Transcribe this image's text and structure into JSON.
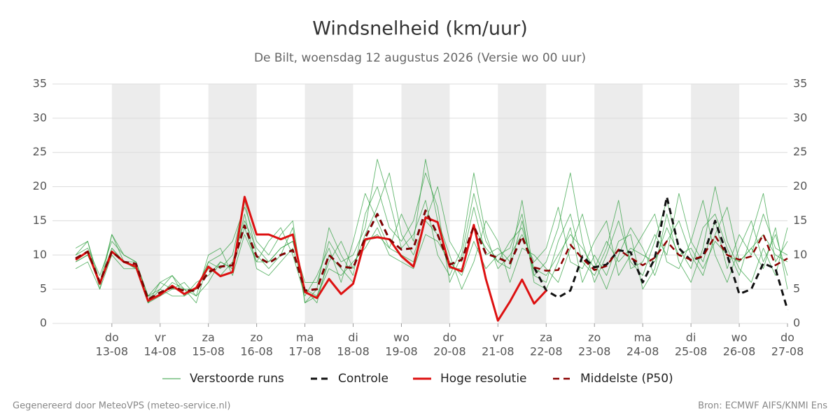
{
  "chart_data": {
    "type": "line",
    "title": "Windsnelheid (km/uur)",
    "subtitle": "De Bilt, woensdag 12 augustus 2026 (Versie wo 00 uur)",
    "footer_left": "Gegenereerd door MeteoVPS (meteo-service.nl)",
    "footer_right": "Bron: ECMWF AIFS/KNMI Ens",
    "x": [
      12.25,
      12.5,
      12.75,
      13,
      13.25,
      13.5,
      13.75,
      14,
      14.25,
      14.5,
      14.75,
      15,
      15.25,
      15.5,
      15.75,
      16,
      16.25,
      16.5,
      16.75,
      17,
      17.25,
      17.5,
      17.75,
      18,
      18.25,
      18.5,
      18.75,
      19,
      19.25,
      19.5,
      19.75,
      20,
      20.25,
      20.5,
      20.75,
      21,
      21.25,
      21.5,
      21.75,
      22,
      22.25,
      22.5,
      22.75,
      23,
      23.25,
      23.5,
      23.75,
      24,
      24.25,
      24.5,
      24.75,
      25,
      25.25,
      25.5,
      25.75,
      26,
      26.25,
      26.5,
      26.75,
      27
    ],
    "xlim": [
      11.77,
      27
    ],
    "xticks": [
      {
        "value": 13,
        "label": "13-08"
      },
      {
        "value": 14,
        "label": "14-08"
      },
      {
        "value": 15,
        "label": "15-08"
      },
      {
        "value": 16,
        "label": "16-08"
      },
      {
        "value": 17,
        "label": "17-08"
      },
      {
        "value": 18,
        "label": "18-08"
      },
      {
        "value": 19,
        "label": "19-08"
      },
      {
        "value": 20,
        "label": "20-08"
      },
      {
        "value": 21,
        "label": "21-08"
      },
      {
        "value": 22,
        "label": "22-08"
      },
      {
        "value": 23,
        "label": "23-08"
      },
      {
        "value": 24,
        "label": "24-08"
      },
      {
        "value": 25,
        "label": "25-08"
      },
      {
        "value": 26,
        "label": "26-08"
      },
      {
        "value": 27,
        "label": "27-08"
      }
    ],
    "xtick_days": [
      "do",
      "vr",
      "za",
      "zo",
      "ma",
      "di",
      "wo",
      "do",
      "vr",
      "za",
      "zo",
      "ma",
      "di",
      "wo",
      "do"
    ],
    "ylim": [
      0,
      35
    ],
    "yticks": [
      0,
      5,
      10,
      15,
      20,
      25,
      30,
      35
    ],
    "grid": true,
    "legend": "bottom",
    "series": [
      {
        "name": "Verstoorde runs",
        "color": "#2e9e3e",
        "linestyle": "solid",
        "linewidth": 0.9,
        "ensemble": true,
        "values": [
          [
            11,
            12,
            5,
            13,
            10,
            9,
            4,
            6,
            7,
            5,
            3,
            9,
            10,
            12,
            17,
            12,
            10,
            13,
            15,
            3,
            5,
            14,
            10,
            7,
            16,
            20,
            14,
            12,
            15,
            22,
            17,
            6,
            10,
            19,
            12,
            9,
            8,
            15,
            7,
            9,
            14,
            22,
            12,
            6,
            10,
            15,
            9,
            7,
            12,
            18,
            11,
            8,
            14,
            16,
            11,
            7,
            13,
            19,
            9,
            12
          ],
          [
            9,
            10,
            6,
            11,
            9,
            8,
            3,
            5,
            4,
            4,
            6,
            7,
            9,
            8,
            16,
            8,
            7,
            9,
            11,
            5,
            4,
            8,
            7,
            9,
            11,
            14,
            10,
            9,
            8,
            13,
            12,
            9,
            7,
            12,
            8,
            10,
            11,
            16,
            6,
            5,
            9,
            14,
            6,
            10,
            7,
            12,
            13,
            5,
            8,
            16,
            9,
            6,
            11,
            20,
            12,
            8,
            6,
            11,
            7,
            14
          ],
          [
            10,
            11,
            7,
            12,
            10,
            9,
            4,
            4,
            6,
            5,
            5,
            8,
            7,
            9,
            15,
            11,
            9,
            11,
            12,
            6,
            6,
            12,
            9,
            10,
            14,
            24,
            18,
            11,
            13,
            18,
            10,
            7,
            11,
            22,
            13,
            8,
            10,
            13,
            9,
            11,
            17,
            9,
            8,
            12,
            15,
            7,
            10,
            13,
            16,
            9,
            8,
            12,
            18,
            10,
            6,
            11,
            15,
            9,
            13,
            7
          ],
          [
            8,
            9,
            5,
            10,
            8,
            8,
            3,
            6,
            5,
            6,
            4,
            10,
            11,
            7,
            13,
            9,
            12,
            14,
            10,
            4,
            7,
            11,
            6,
            12,
            19,
            15,
            11,
            16,
            12,
            24,
            15,
            10,
            5,
            9,
            15,
            12,
            6,
            11,
            10,
            8,
            6,
            11,
            16,
            9,
            5,
            10,
            14,
            11,
            7,
            12,
            15,
            10,
            7,
            13,
            17,
            9,
            11,
            8,
            14,
            5
          ],
          [
            10,
            12,
            6,
            13,
            9,
            9,
            4,
            5,
            7,
            4,
            5,
            9,
            8,
            10,
            18,
            10,
            8,
            10,
            14,
            3,
            4,
            9,
            12,
            8,
            13,
            17,
            22,
            13,
            10,
            15,
            20,
            12,
            9,
            17,
            10,
            11,
            9,
            18,
            7,
            6,
            12,
            16,
            9,
            7,
            11,
            18,
            8,
            9,
            13,
            10,
            19,
            12,
            9,
            15,
            8,
            13,
            10,
            16,
            11,
            10
          ],
          [
            9,
            10,
            6,
            11,
            9,
            8,
            3,
            4,
            5,
            5,
            4,
            6,
            9,
            8,
            14,
            9,
            9,
            11,
            12,
            5,
            3,
            10,
            8,
            6,
            12,
            13,
            11,
            10,
            9,
            15,
            13,
            8,
            8,
            14,
            11,
            9,
            12,
            14,
            8,
            7,
            10,
            13,
            11,
            8,
            12,
            9,
            11,
            10,
            9,
            14,
            10,
            11,
            8,
            12,
            10,
            9,
            11,
            13,
            10,
            9
          ]
        ]
      },
      {
        "name": "Controle",
        "color": "#111111",
        "linestyle": "dashed",
        "linewidth": 3,
        "values": [
          9.5,
          10.5,
          6,
          10.5,
          9,
          8.7,
          3.5,
          4.5,
          5.3,
          4.8,
          4.8,
          7.5,
          8.3,
          8.5,
          14.3,
          9.8,
          8.8,
          10,
          10.7,
          4.8,
          5,
          10,
          8.3,
          8.1,
          12.5,
          16,
          12.3,
          10.8,
          11,
          16.5,
          13,
          8.6,
          9.3,
          14.2,
          10.2,
          9.6,
          8.8,
          12.7,
          8.2,
          4.8,
          3.8,
          4.8,
          9.8,
          8.2,
          8.6,
          10.7,
          10.4,
          6,
          9.5,
          18.5,
          11,
          9.2,
          9.8,
          15,
          10,
          4.3,
          5,
          8.8,
          8,
          2
        ]
      },
      {
        "name": "Hoge resolutie",
        "color": "#dd1111",
        "linestyle": "solid",
        "linewidth": 3,
        "values": [
          9.3,
          10.5,
          5.8,
          10.5,
          9,
          8.3,
          3.3,
          4.2,
          5.5,
          4.3,
          5.2,
          8.3,
          6.9,
          7.5,
          18.5,
          13,
          13,
          12.3,
          13,
          4.6,
          3.7,
          6.5,
          4.3,
          5.8,
          12.3,
          12.6,
          12.3,
          9.8,
          8.3,
          15.5,
          14.8,
          8.3,
          7.6,
          14.4,
          6.5,
          0.4,
          3.2,
          6.4,
          2.9,
          4.8,
          null,
          null,
          null,
          null,
          null,
          null,
          null,
          null,
          null,
          null,
          null,
          null,
          null,
          null,
          null,
          null,
          null,
          null,
          null,
          null
        ]
      },
      {
        "name": "Middelste (P50)",
        "color": "#8b0000",
        "linestyle": "dashed",
        "linewidth": 2.5,
        "values": [
          9.5,
          10.5,
          6,
          10.5,
          9,
          8.7,
          3.5,
          4.5,
          5.3,
          4.8,
          4.8,
          7.5,
          8.3,
          8.5,
          14.3,
          9.8,
          8.8,
          10,
          10.7,
          4.8,
          5,
          10,
          8.3,
          8.1,
          12.5,
          16,
          12.3,
          10.8,
          11,
          16.5,
          13,
          8.6,
          9.3,
          14.2,
          10.2,
          9.6,
          8.8,
          12.7,
          8.2,
          7.7,
          7.8,
          11.5,
          9.5,
          7.8,
          8.4,
          10.8,
          9.6,
          8.5,
          9.6,
          12,
          10,
          9.3,
          9.8,
          12.8,
          10,
          9.3,
          9.8,
          13,
          8.5,
          9.5
        ]
      }
    ]
  }
}
